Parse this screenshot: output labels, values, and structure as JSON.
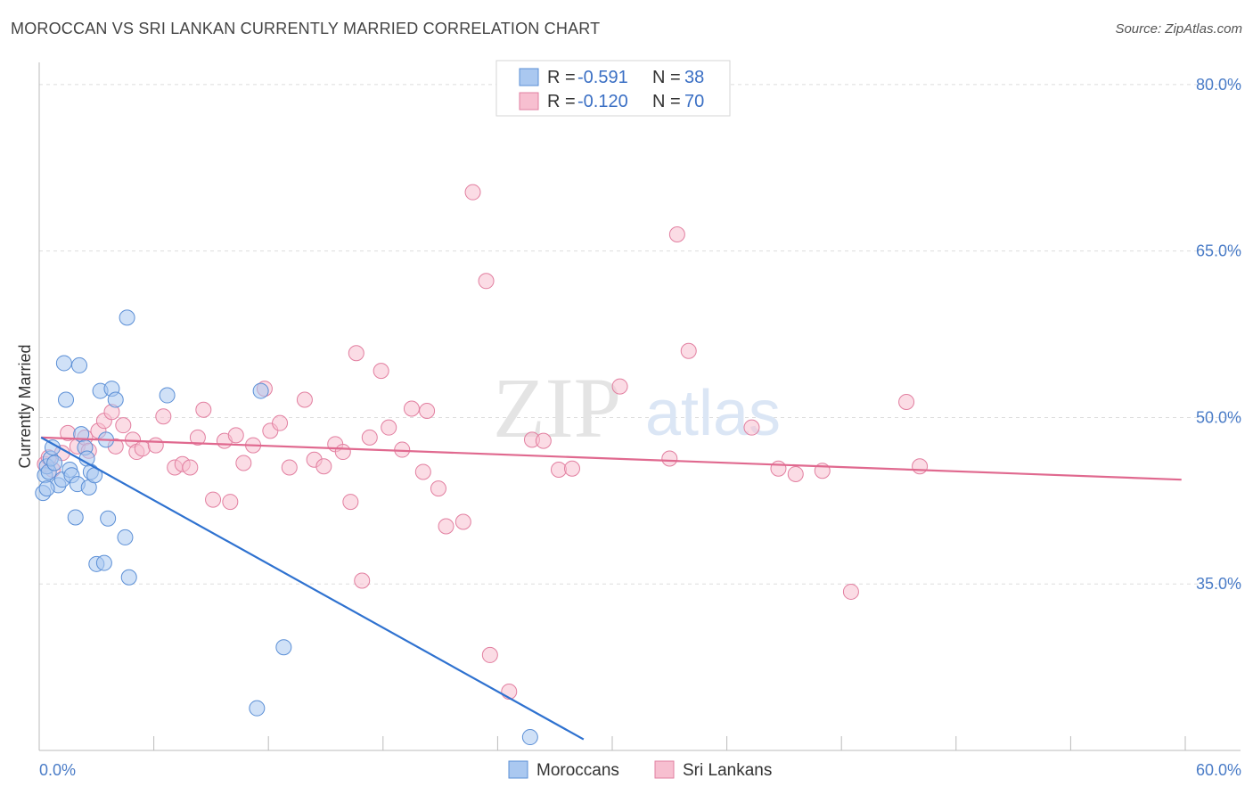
{
  "title": "MOROCCAN VS SRI LANKAN CURRENTLY MARRIED CORRELATION CHART",
  "source": "Source: ZipAtlas.com",
  "watermark": {
    "zip": "ZIP",
    "atlas": "atlas"
  },
  "legend": {
    "r_label": "R =",
    "n_label": "N =",
    "moroccan": {
      "r": "-0.591",
      "n": "38"
    },
    "srilankan": {
      "r": "-0.120",
      "n": "70"
    }
  },
  "colors": {
    "moroccan_fill": "#aac8f0",
    "moroccan_stroke": "#5b8fd6",
    "moroccan_line": "#2f72d0",
    "srilankan_fill": "#f7bfd0",
    "srilankan_stroke": "#e27fa0",
    "srilankan_line": "#e0698f",
    "tick_text": "#4a7cc7",
    "grid": "#dddddd"
  },
  "chart_data": {
    "type": "scatter",
    "title": "MOROCCAN VS SRI LANKAN CURRENTLY MARRIED CORRELATION CHART",
    "xlabel": "",
    "ylabel": "Currently Married",
    "xlim": [
      0,
      60
    ],
    "ylim": [
      20,
      82
    ],
    "x_tick_labels": [
      "0.0%",
      "60.0%"
    ],
    "y_ticks": [
      35,
      50,
      65,
      80
    ],
    "y_tick_labels": [
      "35.0%",
      "50.0%",
      "65.0%",
      "80.0%"
    ],
    "grid": true,
    "series": [
      {
        "name": "Moroccans",
        "trend": {
          "x": [
            0.1,
            28.5
          ],
          "y": [
            48.2,
            21.0
          ]
        },
        "points": [
          [
            0.2,
            43.2
          ],
          [
            0.3,
            44.8
          ],
          [
            0.4,
            45.6
          ],
          [
            0.5,
            45.1
          ],
          [
            0.6,
            46.3
          ],
          [
            0.7,
            47.3
          ],
          [
            0.8,
            45.9
          ],
          [
            1.0,
            43.9
          ],
          [
            1.2,
            44.4
          ],
          [
            1.3,
            54.9
          ],
          [
            1.4,
            51.6
          ],
          [
            1.6,
            45.3
          ],
          [
            1.7,
            44.8
          ],
          [
            1.9,
            41.0
          ],
          [
            2.0,
            44.0
          ],
          [
            2.1,
            54.7
          ],
          [
            2.2,
            48.5
          ],
          [
            2.4,
            47.3
          ],
          [
            2.5,
            46.3
          ],
          [
            2.6,
            43.7
          ],
          [
            2.7,
            45.1
          ],
          [
            2.9,
            44.8
          ],
          [
            3.0,
            36.8
          ],
          [
            3.2,
            52.4
          ],
          [
            3.4,
            36.9
          ],
          [
            3.5,
            48.0
          ],
          [
            3.6,
            40.9
          ],
          [
            3.8,
            52.6
          ],
          [
            4.0,
            51.6
          ],
          [
            4.5,
            39.2
          ],
          [
            4.6,
            59.0
          ],
          [
            4.7,
            35.6
          ],
          [
            6.7,
            52.0
          ],
          [
            11.4,
            23.8
          ],
          [
            11.6,
            52.4
          ],
          [
            12.8,
            29.3
          ],
          [
            25.7,
            21.2
          ],
          [
            0.4,
            43.6
          ]
        ]
      },
      {
        "name": "Sri Lankans",
        "trend": {
          "x": [
            0.1,
            59.8
          ],
          "y": [
            48.2,
            44.4
          ]
        },
        "points": [
          [
            0.3,
            45.8
          ],
          [
            0.5,
            46.4
          ],
          [
            0.7,
            45.3
          ],
          [
            1.2,
            46.8
          ],
          [
            1.5,
            48.6
          ],
          [
            2.0,
            47.4
          ],
          [
            2.4,
            48.2
          ],
          [
            2.6,
            47.0
          ],
          [
            3.1,
            48.8
          ],
          [
            3.4,
            49.7
          ],
          [
            3.8,
            50.5
          ],
          [
            4.0,
            47.4
          ],
          [
            4.4,
            49.3
          ],
          [
            4.9,
            48.0
          ],
          [
            5.1,
            46.9
          ],
          [
            5.4,
            47.2
          ],
          [
            6.1,
            47.5
          ],
          [
            6.5,
            50.1
          ],
          [
            7.1,
            45.5
          ],
          [
            7.5,
            45.8
          ],
          [
            7.9,
            45.5
          ],
          [
            8.3,
            48.2
          ],
          [
            8.6,
            50.7
          ],
          [
            9.1,
            42.6
          ],
          [
            9.7,
            47.9
          ],
          [
            10.0,
            42.4
          ],
          [
            10.3,
            48.4
          ],
          [
            10.7,
            45.9
          ],
          [
            11.2,
            47.5
          ],
          [
            11.8,
            52.6
          ],
          [
            12.1,
            48.8
          ],
          [
            12.6,
            49.5
          ],
          [
            13.1,
            45.5
          ],
          [
            13.9,
            51.6
          ],
          [
            14.4,
            46.2
          ],
          [
            14.9,
            45.6
          ],
          [
            15.5,
            47.6
          ],
          [
            15.9,
            46.9
          ],
          [
            16.3,
            42.4
          ],
          [
            16.6,
            55.8
          ],
          [
            16.9,
            35.3
          ],
          [
            17.3,
            48.2
          ],
          [
            17.9,
            54.2
          ],
          [
            18.3,
            49.1
          ],
          [
            19.0,
            47.1
          ],
          [
            19.5,
            50.8
          ],
          [
            20.1,
            45.1
          ],
          [
            20.3,
            50.6
          ],
          [
            20.9,
            43.6
          ],
          [
            21.3,
            40.2
          ],
          [
            22.2,
            40.6
          ],
          [
            22.7,
            70.3
          ],
          [
            23.4,
            62.3
          ],
          [
            23.6,
            28.6
          ],
          [
            24.6,
            25.3
          ],
          [
            25.8,
            48.0
          ],
          [
            26.4,
            47.9
          ],
          [
            27.2,
            45.3
          ],
          [
            27.9,
            45.4
          ],
          [
            30.4,
            52.8
          ],
          [
            33.0,
            46.3
          ],
          [
            33.4,
            66.5
          ],
          [
            34.0,
            56.0
          ],
          [
            37.3,
            49.1
          ],
          [
            38.7,
            45.4
          ],
          [
            39.6,
            44.9
          ],
          [
            41.0,
            45.2
          ],
          [
            42.5,
            34.3
          ],
          [
            45.4,
            51.4
          ],
          [
            46.1,
            45.6
          ]
        ]
      }
    ]
  },
  "bottom_legend": {
    "moroccans": "Moroccans",
    "srilankans": "Sri Lankans"
  }
}
